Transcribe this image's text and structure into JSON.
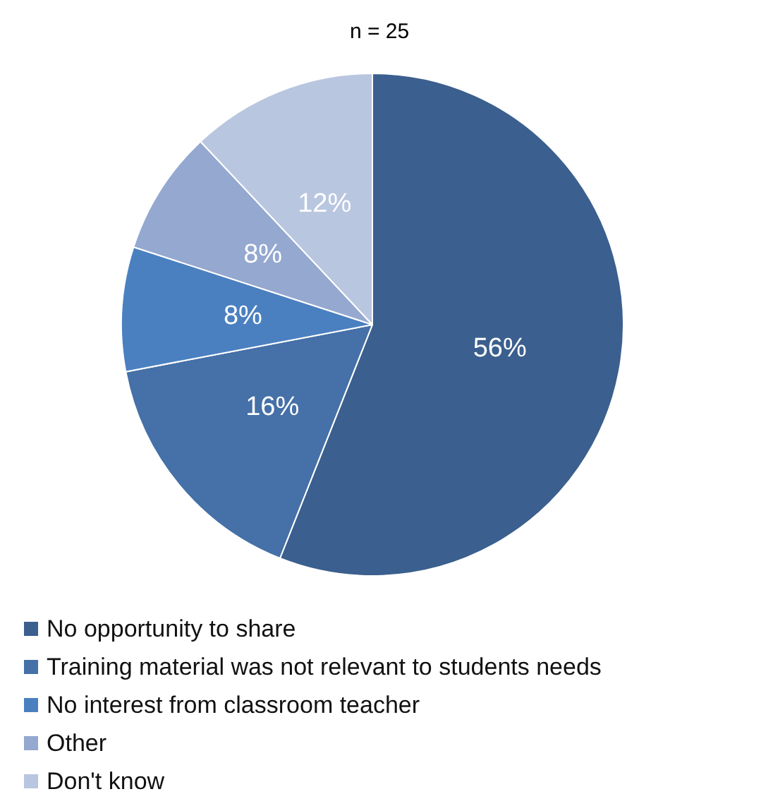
{
  "chart_data": {
    "type": "pie",
    "title": "n = 25",
    "categories": [
      "No opportunity to share",
      "Training material was not relevant to students needs",
      "No interest from classroom teacher",
      "Other",
      "Don't know"
    ],
    "values": [
      56,
      16,
      8,
      8,
      12
    ],
    "colors": [
      "#3b5f8e",
      "#4570a8",
      "#4b80c0",
      "#94a8d0",
      "#b9c6e0"
    ],
    "value_labels": [
      "56%",
      "16%",
      "8%",
      "8%",
      "12%"
    ],
    "legend": "bottom"
  }
}
